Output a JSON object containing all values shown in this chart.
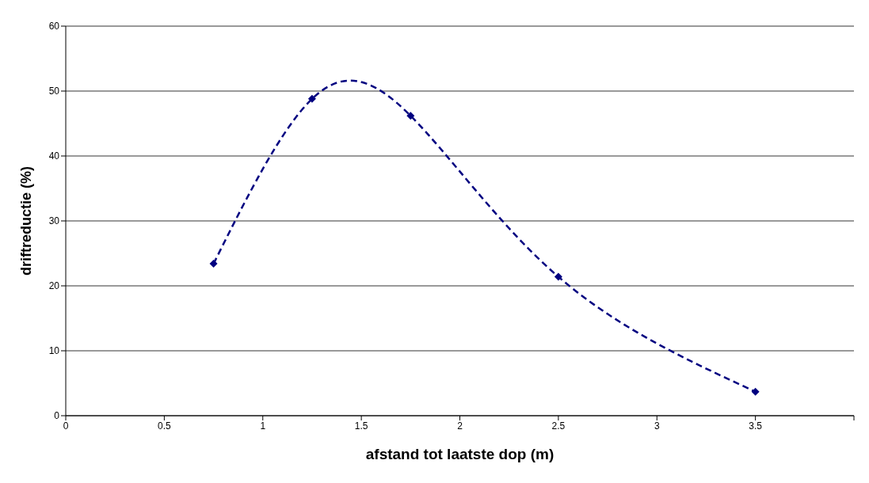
{
  "chart_data": {
    "type": "line",
    "xlabel": "afstand tot laatste dop (m)",
    "ylabel": "driftreductie (%)",
    "x": [
      0.75,
      1.25,
      1.75,
      2.5,
      3.5
    ],
    "series": [
      {
        "color": "#000080",
        "values": [
          23.4,
          48.8,
          46.2,
          21.4,
          3.7
        ]
      }
    ],
    "xlim": [
      0,
      4
    ],
    "xticks": [
      0,
      0.5,
      1,
      1.5,
      2,
      2.5,
      3,
      3.5,
      {
        "value": 4,
        "label": null
      }
    ],
    "ylim": [
      0,
      60
    ],
    "yticks": [
      0,
      10,
      20,
      30,
      40,
      50,
      60
    ],
    "grid": "y",
    "marker": "diamond",
    "line_style": "dashed",
    "legend": false
  }
}
